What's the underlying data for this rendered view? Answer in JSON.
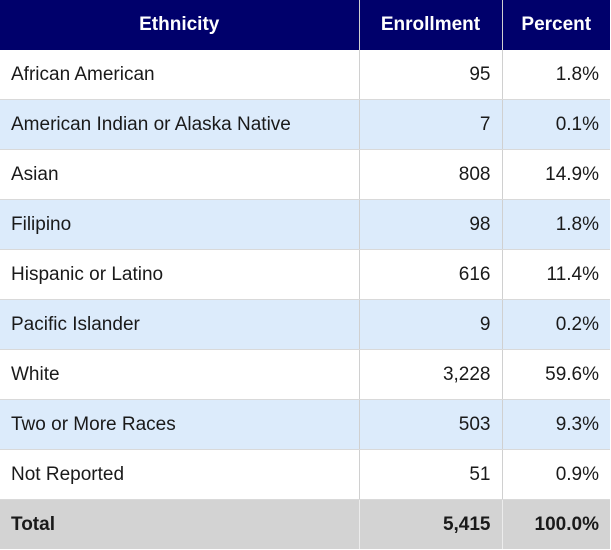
{
  "table": {
    "headers": {
      "ethnicity": "Ethnicity",
      "enrollment": "Enrollment",
      "percent": "Percent"
    },
    "rows": [
      {
        "ethnicity": "African American",
        "enrollment": "95",
        "percent": "1.8%"
      },
      {
        "ethnicity": "American Indian or Alaska Native",
        "enrollment": "7",
        "percent": "0.1%"
      },
      {
        "ethnicity": "Asian",
        "enrollment": "808",
        "percent": "14.9%"
      },
      {
        "ethnicity": "Filipino",
        "enrollment": "98",
        "percent": "1.8%"
      },
      {
        "ethnicity": "Hispanic or Latino",
        "enrollment": "616",
        "percent": "11.4%"
      },
      {
        "ethnicity": "Pacific Islander",
        "enrollment": "9",
        "percent": "0.2%"
      },
      {
        "ethnicity": "White",
        "enrollment": "3,228",
        "percent": "59.6%"
      },
      {
        "ethnicity": "Two or More Races",
        "enrollment": "503",
        "percent": "9.3%"
      },
      {
        "ethnicity": "Not Reported",
        "enrollment": "51",
        "percent": "0.9%"
      }
    ],
    "total": {
      "label": "Total",
      "enrollment": "5,415",
      "percent": "100.0%"
    }
  },
  "colors": {
    "header_bg": "#00006b",
    "header_text": "#ffffff",
    "row_alt_bg": "#dcebfb",
    "total_bg": "#d3d3d3"
  }
}
